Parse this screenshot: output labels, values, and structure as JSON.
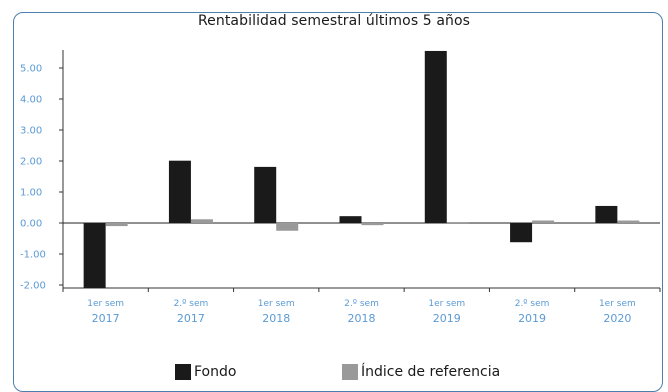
{
  "chart_data": {
    "type": "bar",
    "title": "Rentabilidad semestral últimos 5 años",
    "categories": [
      [
        "1er sem",
        "2017"
      ],
      [
        "2.º sem",
        "2017"
      ],
      [
        "1er sem",
        "2018"
      ],
      [
        "2.º sem",
        "2018"
      ],
      [
        "1er sem",
        "2019"
      ],
      [
        "2.º sem",
        "2019"
      ],
      [
        "1er sem",
        "2020"
      ]
    ],
    "series": [
      {
        "name": "Fondo",
        "color": "#1a1a1a",
        "values": [
          -2.1,
          2.01,
          1.81,
          0.22,
          5.55,
          -0.62,
          0.55
        ]
      },
      {
        "name": "Índice de referencia",
        "color": "#999999",
        "values": [
          -0.1,
          0.12,
          -0.25,
          -0.07,
          0.03,
          0.08,
          0.08
        ]
      }
    ],
    "yticks": [
      "5.00",
      "4.00",
      "3.00",
      "2.00",
      "1.00",
      "0.00",
      "-1.00",
      "-2.00"
    ],
    "ylim": [
      -2.1,
      5.6
    ],
    "xlabel": "",
    "ylabel": "",
    "grid": false,
    "legend_position": "bottom-center"
  }
}
